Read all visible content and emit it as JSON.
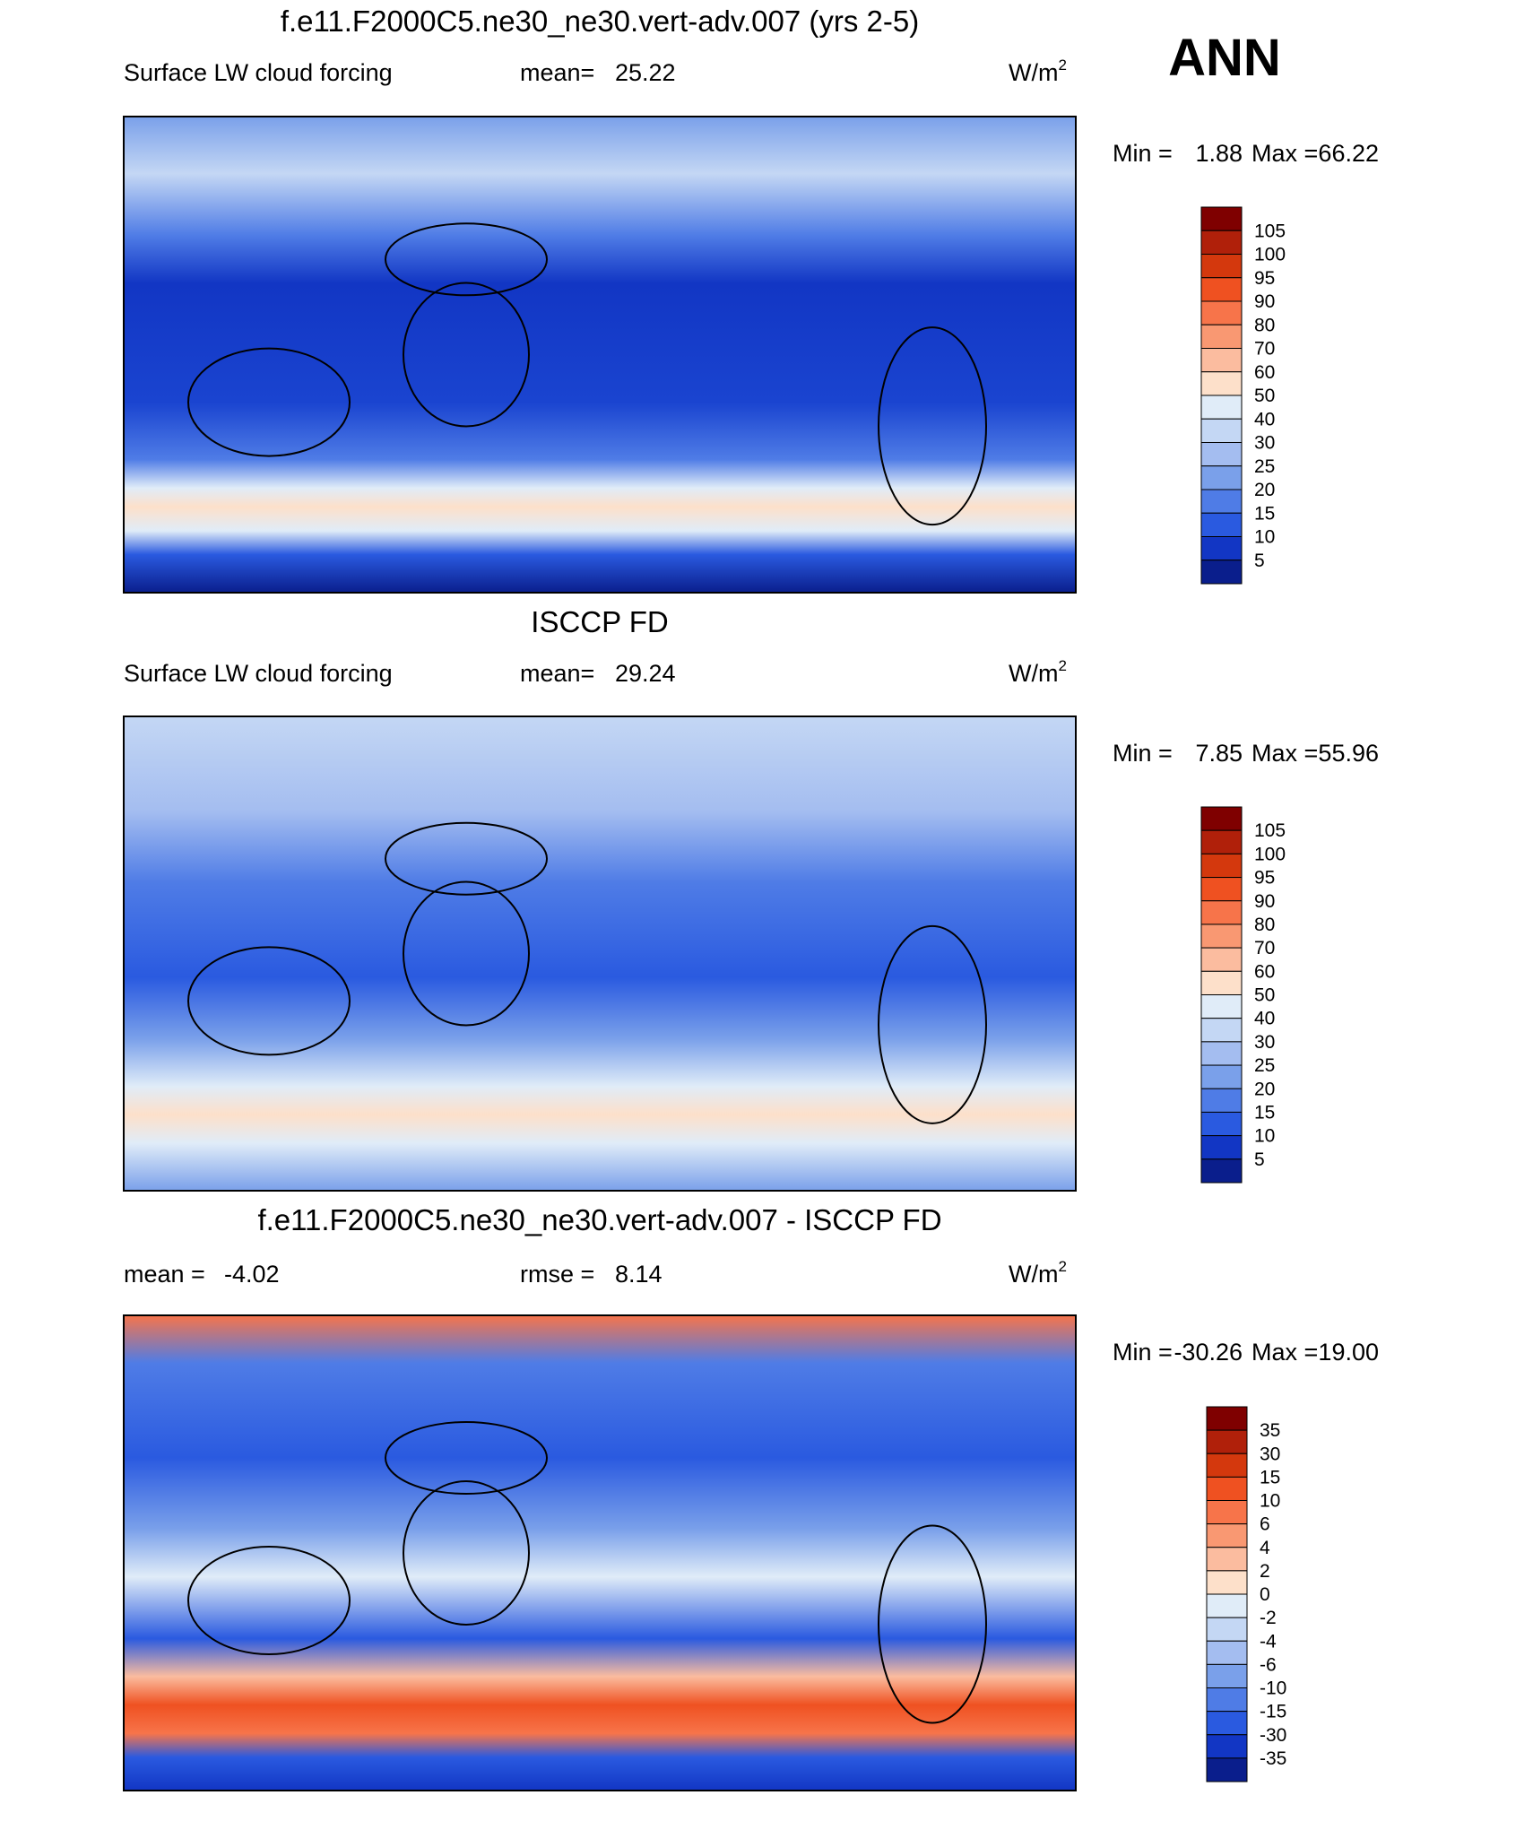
{
  "header": {
    "season": "ANN"
  },
  "colorbar_colors": [
    "#7f0000",
    "#b0200a",
    "#d4380d",
    "#ef5121",
    "#f7744a",
    "#f99872",
    "#fbbc9f",
    "#fde0ca",
    "#e0ecf8",
    "#c4d7f4",
    "#a4bdf0",
    "#7aa0ea",
    "#4f7ce6",
    "#2a5ae0",
    "#1236c4",
    "#0a1e8c"
  ],
  "panels": [
    {
      "title": "f.e11.F2000C5.ne30_ne30.vert-adv.007 (yrs 2-5)",
      "left": "Surface LW cloud forcing",
      "middle_label": "mean=",
      "middle_value": "25.22",
      "units": "W/m",
      "units_sup": "2",
      "min_label": "Min =",
      "min": "1.88",
      "max_label": "Max =",
      "max": "66.22",
      "levels": [
        "105",
        "100",
        "95",
        "90",
        "80",
        "70",
        "60",
        "50",
        "40",
        "30",
        "25",
        "20",
        "15",
        "10",
        "5"
      ]
    },
    {
      "title": "ISCCP FD",
      "left": "Surface LW cloud forcing",
      "middle_label": "mean=",
      "middle_value": "29.24",
      "units": "W/m",
      "units_sup": "2",
      "min_label": "Min =",
      "min": "7.85",
      "max_label": "Max =",
      "max": "55.96",
      "levels": [
        "105",
        "100",
        "95",
        "90",
        "80",
        "70",
        "60",
        "50",
        "40",
        "30",
        "25",
        "20",
        "15",
        "10",
        "5"
      ]
    },
    {
      "title": "f.e11.F2000C5.ne30_ne30.vert-adv.007 - ISCCP FD",
      "left_label": "mean =",
      "left_value": "-4.02",
      "middle_label": "rmse =",
      "middle_value": "8.14",
      "units": "W/m",
      "units_sup": "2",
      "min_label": "Min =",
      "min": "-30.26",
      "max_label": "Max =",
      "max": "19.00",
      "levels": [
        "35",
        "30",
        "15",
        "10",
        "6",
        "4",
        "2",
        "0",
        "-2",
        "-4",
        "-6",
        "-10",
        "-15",
        "-30",
        "-35"
      ]
    }
  ]
}
